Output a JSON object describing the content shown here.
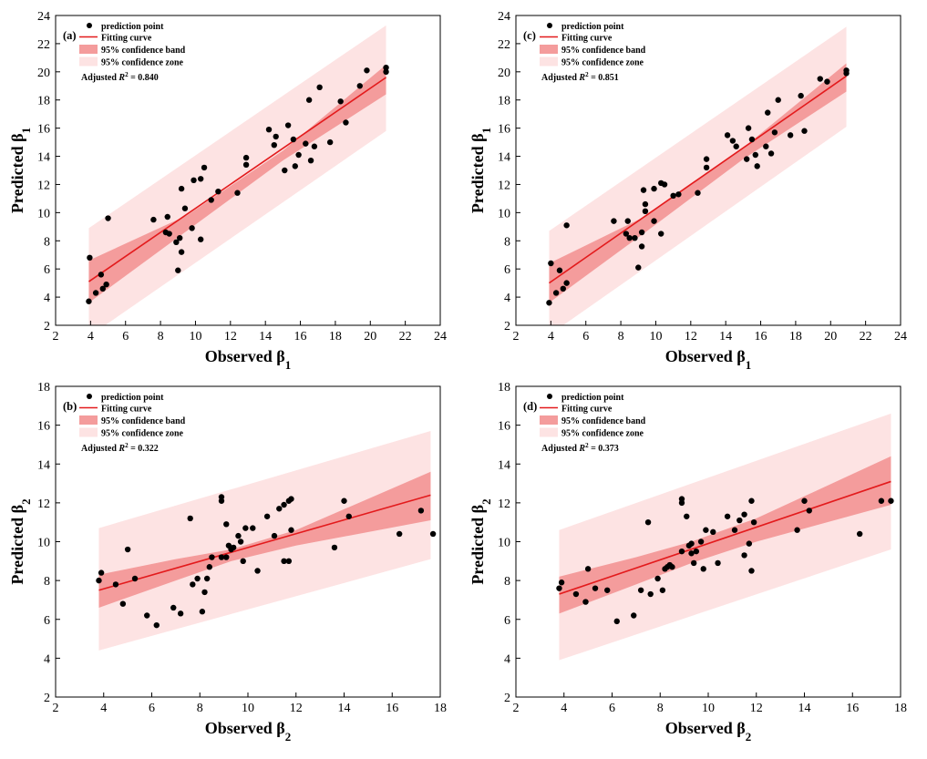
{
  "colors": {
    "zone": "#fde3e3",
    "band": "#f49c9c",
    "fit": "#e31a1c",
    "point": "#000000",
    "axis": "#000000"
  },
  "legend": {
    "point": "prediction point",
    "fit": "Fitting curve",
    "band": "95% confidence band",
    "zone": "95% confidence zone"
  },
  "chart_data": [
    {
      "type": "scatter",
      "panel": "(a)",
      "xlabel": "Observed β1",
      "ylabel": "Predicted β1",
      "r2_label": "Adjusted R² = 0.840",
      "xlim": [
        2,
        24
      ],
      "ylim": [
        2,
        24
      ],
      "xticks": [
        2,
        4,
        6,
        8,
        10,
        12,
        14,
        16,
        18,
        20,
        22,
        24
      ],
      "yticks": [
        2,
        4,
        6,
        8,
        10,
        12,
        14,
        16,
        18,
        20,
        22,
        24
      ],
      "fit_x": [
        3.9,
        20.9
      ],
      "fit_y": [
        5.1,
        19.6
      ],
      "band": {
        "x": [
          3.9,
          9.5,
          15.0,
          20.9
        ],
        "lower": [
          3.6,
          8.7,
          13.7,
          18.4
        ],
        "upper": [
          6.6,
          9.8,
          14.4,
          20.5
        ]
      },
      "zone": {
        "x": [
          3.9,
          20.9
        ],
        "lower": [
          1.2,
          15.8
        ],
        "upper": [
          8.9,
          23.3
        ]
      },
      "points": [
        [
          3.9,
          3.7
        ],
        [
          3.95,
          6.8
        ],
        [
          4.3,
          4.3
        ],
        [
          4.6,
          5.6
        ],
        [
          4.7,
          4.6
        ],
        [
          4.9,
          4.9
        ],
        [
          5.0,
          9.6
        ],
        [
          7.6,
          9.5
        ],
        [
          8.3,
          8.6
        ],
        [
          8.5,
          8.5
        ],
        [
          8.4,
          9.7
        ],
        [
          8.9,
          7.9
        ],
        [
          9.0,
          5.9
        ],
        [
          9.1,
          8.2
        ],
        [
          9.2,
          11.7
        ],
        [
          9.2,
          7.2
        ],
        [
          9.4,
          10.3
        ],
        [
          9.8,
          8.9
        ],
        [
          9.9,
          12.3
        ],
        [
          10.3,
          8.1
        ],
        [
          10.3,
          12.4
        ],
        [
          10.5,
          13.2
        ],
        [
          10.9,
          10.9
        ],
        [
          11.3,
          11.5
        ],
        [
          12.4,
          11.4
        ],
        [
          12.9,
          13.9
        ],
        [
          12.9,
          13.4
        ],
        [
          14.2,
          15.9
        ],
        [
          14.5,
          14.8
        ],
        [
          14.6,
          15.4
        ],
        [
          15.1,
          13.0
        ],
        [
          15.3,
          16.2
        ],
        [
          15.6,
          15.2
        ],
        [
          15.7,
          13.3
        ],
        [
          15.9,
          14.1
        ],
        [
          16.3,
          14.9
        ],
        [
          16.5,
          18.0
        ],
        [
          16.6,
          13.7
        ],
        [
          16.8,
          14.7
        ],
        [
          17.1,
          18.9
        ],
        [
          17.7,
          15.0
        ],
        [
          18.3,
          17.9
        ],
        [
          18.6,
          16.4
        ],
        [
          19.4,
          19.0
        ],
        [
          19.8,
          20.1
        ],
        [
          20.9,
          20.0
        ],
        [
          20.9,
          20.3
        ]
      ]
    },
    {
      "type": "scatter",
      "panel": "(c)",
      "xlabel": "Observed β1",
      "ylabel": "Predicted β1",
      "r2_label": "Adjusted R² = 0.851",
      "xlim": [
        2,
        24
      ],
      "ylim": [
        2,
        24
      ],
      "xticks": [
        2,
        4,
        6,
        8,
        10,
        12,
        14,
        16,
        18,
        20,
        22,
        24
      ],
      "yticks": [
        2,
        4,
        6,
        8,
        10,
        12,
        14,
        16,
        18,
        20,
        22,
        24
      ],
      "fit_x": [
        3.9,
        20.9
      ],
      "fit_y": [
        5.0,
        19.7
      ],
      "band": {
        "x": [
          3.9,
          9.5,
          15.0,
          20.9
        ],
        "lower": [
          3.6,
          8.7,
          13.8,
          18.6
        ],
        "upper": [
          6.4,
          9.8,
          14.6,
          20.6
        ]
      },
      "zone": {
        "x": [
          3.9,
          20.9
        ],
        "lower": [
          1.3,
          16.1
        ],
        "upper": [
          8.7,
          23.2
        ]
      },
      "points": [
        [
          3.9,
          3.6
        ],
        [
          4.0,
          6.4
        ],
        [
          4.3,
          4.3
        ],
        [
          4.5,
          5.9
        ],
        [
          4.7,
          4.6
        ],
        [
          4.9,
          5.0
        ],
        [
          4.9,
          9.1
        ],
        [
          7.6,
          9.4
        ],
        [
          8.3,
          8.5
        ],
        [
          8.5,
          8.2
        ],
        [
          8.4,
          9.4
        ],
        [
          8.8,
          8.2
        ],
        [
          9.0,
          6.1
        ],
        [
          9.2,
          8.6
        ],
        [
          9.3,
          11.6
        ],
        [
          9.2,
          7.6
        ],
        [
          9.4,
          10.1
        ],
        [
          9.4,
          10.6
        ],
        [
          9.9,
          9.4
        ],
        [
          9.9,
          11.7
        ],
        [
          10.3,
          8.5
        ],
        [
          10.3,
          12.1
        ],
        [
          10.5,
          12.0
        ],
        [
          11.0,
          11.2
        ],
        [
          11.3,
          11.3
        ],
        [
          12.4,
          11.4
        ],
        [
          12.9,
          13.8
        ],
        [
          12.9,
          13.2
        ],
        [
          14.1,
          15.5
        ],
        [
          14.4,
          15.1
        ],
        [
          14.6,
          14.7
        ],
        [
          15.2,
          13.8
        ],
        [
          15.3,
          16.0
        ],
        [
          15.5,
          15.2
        ],
        [
          15.7,
          14.1
        ],
        [
          15.8,
          13.3
        ],
        [
          16.3,
          14.7
        ],
        [
          16.4,
          17.1
        ],
        [
          16.6,
          14.2
        ],
        [
          16.8,
          15.7
        ],
        [
          17.0,
          18.0
        ],
        [
          17.7,
          15.5
        ],
        [
          18.3,
          18.3
        ],
        [
          18.5,
          15.8
        ],
        [
          19.4,
          19.5
        ],
        [
          19.8,
          19.3
        ],
        [
          20.9,
          19.9
        ],
        [
          20.9,
          20.1
        ]
      ]
    },
    {
      "type": "scatter",
      "panel": "(b)",
      "xlabel": "Observed β2",
      "ylabel": "Predicted β2",
      "r2_label": "Adjusted R² = 0.322",
      "xlim": [
        2,
        18
      ],
      "ylim": [
        2,
        18
      ],
      "xticks": [
        2,
        4,
        6,
        8,
        10,
        12,
        14,
        16,
        18
      ],
      "yticks": [
        2,
        4,
        6,
        8,
        10,
        12,
        14,
        16,
        18
      ],
      "fit_x": [
        3.8,
        17.6
      ],
      "fit_y": [
        7.5,
        12.4
      ],
      "band": {
        "x": [
          3.8,
          7.0,
          9.3,
          12.0,
          17.6
        ],
        "lower": [
          6.6,
          8.0,
          9.0,
          9.8,
          11.1
        ],
        "upper": [
          8.3,
          9.1,
          9.6,
          10.6,
          13.6
        ]
      },
      "zone": {
        "x": [
          3.8,
          17.6
        ],
        "lower": [
          4.4,
          9.1
        ],
        "upper": [
          10.7,
          15.7
        ]
      },
      "points": [
        [
          3.8,
          8.0
        ],
        [
          3.9,
          8.4
        ],
        [
          4.5,
          7.8
        ],
        [
          4.8,
          6.8
        ],
        [
          5.0,
          9.6
        ],
        [
          5.3,
          8.1
        ],
        [
          5.8,
          6.2
        ],
        [
          6.2,
          5.7
        ],
        [
          6.9,
          6.6
        ],
        [
          7.2,
          6.3
        ],
        [
          7.6,
          11.2
        ],
        [
          7.7,
          7.8
        ],
        [
          7.9,
          8.1
        ],
        [
          8.1,
          6.4
        ],
        [
          8.2,
          7.4
        ],
        [
          8.3,
          8.1
        ],
        [
          8.4,
          8.7
        ],
        [
          8.5,
          9.2
        ],
        [
          8.9,
          12.3
        ],
        [
          8.9,
          12.1
        ],
        [
          8.9,
          9.2
        ],
        [
          9.1,
          9.2
        ],
        [
          9.1,
          10.9
        ],
        [
          9.2,
          9.8
        ],
        [
          9.3,
          9.6
        ],
        [
          9.4,
          9.7
        ],
        [
          9.6,
          10.3
        ],
        [
          9.7,
          10.0
        ],
        [
          9.8,
          9.0
        ],
        [
          9.9,
          10.7
        ],
        [
          10.2,
          10.7
        ],
        [
          10.4,
          8.5
        ],
        [
          10.8,
          11.3
        ],
        [
          11.1,
          10.3
        ],
        [
          11.3,
          11.7
        ],
        [
          11.5,
          11.9
        ],
        [
          11.5,
          9.0
        ],
        [
          11.7,
          9.0
        ],
        [
          11.7,
          12.1
        ],
        [
          11.8,
          12.2
        ],
        [
          11.8,
          10.6
        ],
        [
          13.6,
          9.7
        ],
        [
          14.0,
          12.1
        ],
        [
          14.2,
          11.3
        ],
        [
          16.3,
          10.4
        ],
        [
          17.2,
          11.6
        ],
        [
          17.7,
          10.4
        ]
      ]
    },
    {
      "type": "scatter",
      "panel": "(d)",
      "xlabel": "Observed β2",
      "ylabel": "Predicted β2",
      "r2_label": "Adjusted R² = 0.373",
      "xlim": [
        2,
        18
      ],
      "ylim": [
        2,
        18
      ],
      "xticks": [
        2,
        4,
        6,
        8,
        10,
        12,
        14,
        16,
        18
      ],
      "yticks": [
        2,
        4,
        6,
        8,
        10,
        12,
        14,
        16,
        18
      ],
      "fit_x": [
        3.8,
        17.6
      ],
      "fit_y": [
        7.3,
        13.1
      ],
      "band": {
        "x": [
          3.8,
          7.0,
          9.3,
          12.0,
          17.6
        ],
        "lower": [
          6.3,
          7.8,
          8.9,
          10.0,
          11.9
        ],
        "upper": [
          8.2,
          9.2,
          10.0,
          11.2,
          14.4
        ]
      },
      "zone": {
        "x": [
          3.8,
          17.6
        ],
        "lower": [
          3.9,
          9.6
        ],
        "upper": [
          10.6,
          16.6
        ]
      },
      "points": [
        [
          3.8,
          7.6
        ],
        [
          3.9,
          7.9
        ],
        [
          4.5,
          7.3
        ],
        [
          4.9,
          6.9
        ],
        [
          5.0,
          8.6
        ],
        [
          5.3,
          7.6
        ],
        [
          5.8,
          7.5
        ],
        [
          6.2,
          5.9
        ],
        [
          6.9,
          6.2
        ],
        [
          7.2,
          7.5
        ],
        [
          7.5,
          11.0
        ],
        [
          7.6,
          7.3
        ],
        [
          7.9,
          8.1
        ],
        [
          8.1,
          7.5
        ],
        [
          8.2,
          8.6
        ],
        [
          8.3,
          8.7
        ],
        [
          8.4,
          8.8
        ],
        [
          8.5,
          8.7
        ],
        [
          8.9,
          12.0
        ],
        [
          8.9,
          12.2
        ],
        [
          8.9,
          9.5
        ],
        [
          9.1,
          11.3
        ],
        [
          9.2,
          9.8
        ],
        [
          9.3,
          9.9
        ],
        [
          9.3,
          9.4
        ],
        [
          9.4,
          8.9
        ],
        [
          9.5,
          9.5
        ],
        [
          9.7,
          10.0
        ],
        [
          9.8,
          8.6
        ],
        [
          9.9,
          10.6
        ],
        [
          10.2,
          10.5
        ],
        [
          10.4,
          8.9
        ],
        [
          10.8,
          11.3
        ],
        [
          11.1,
          10.6
        ],
        [
          11.3,
          11.1
        ],
        [
          11.5,
          11.4
        ],
        [
          11.5,
          9.3
        ],
        [
          11.7,
          9.9
        ],
        [
          11.8,
          12.1
        ],
        [
          11.8,
          8.5
        ],
        [
          11.9,
          11.0
        ],
        [
          13.7,
          10.6
        ],
        [
          14.0,
          12.1
        ],
        [
          14.2,
          11.6
        ],
        [
          16.3,
          10.4
        ],
        [
          17.2,
          12.1
        ],
        [
          17.6,
          12.1
        ]
      ]
    }
  ]
}
